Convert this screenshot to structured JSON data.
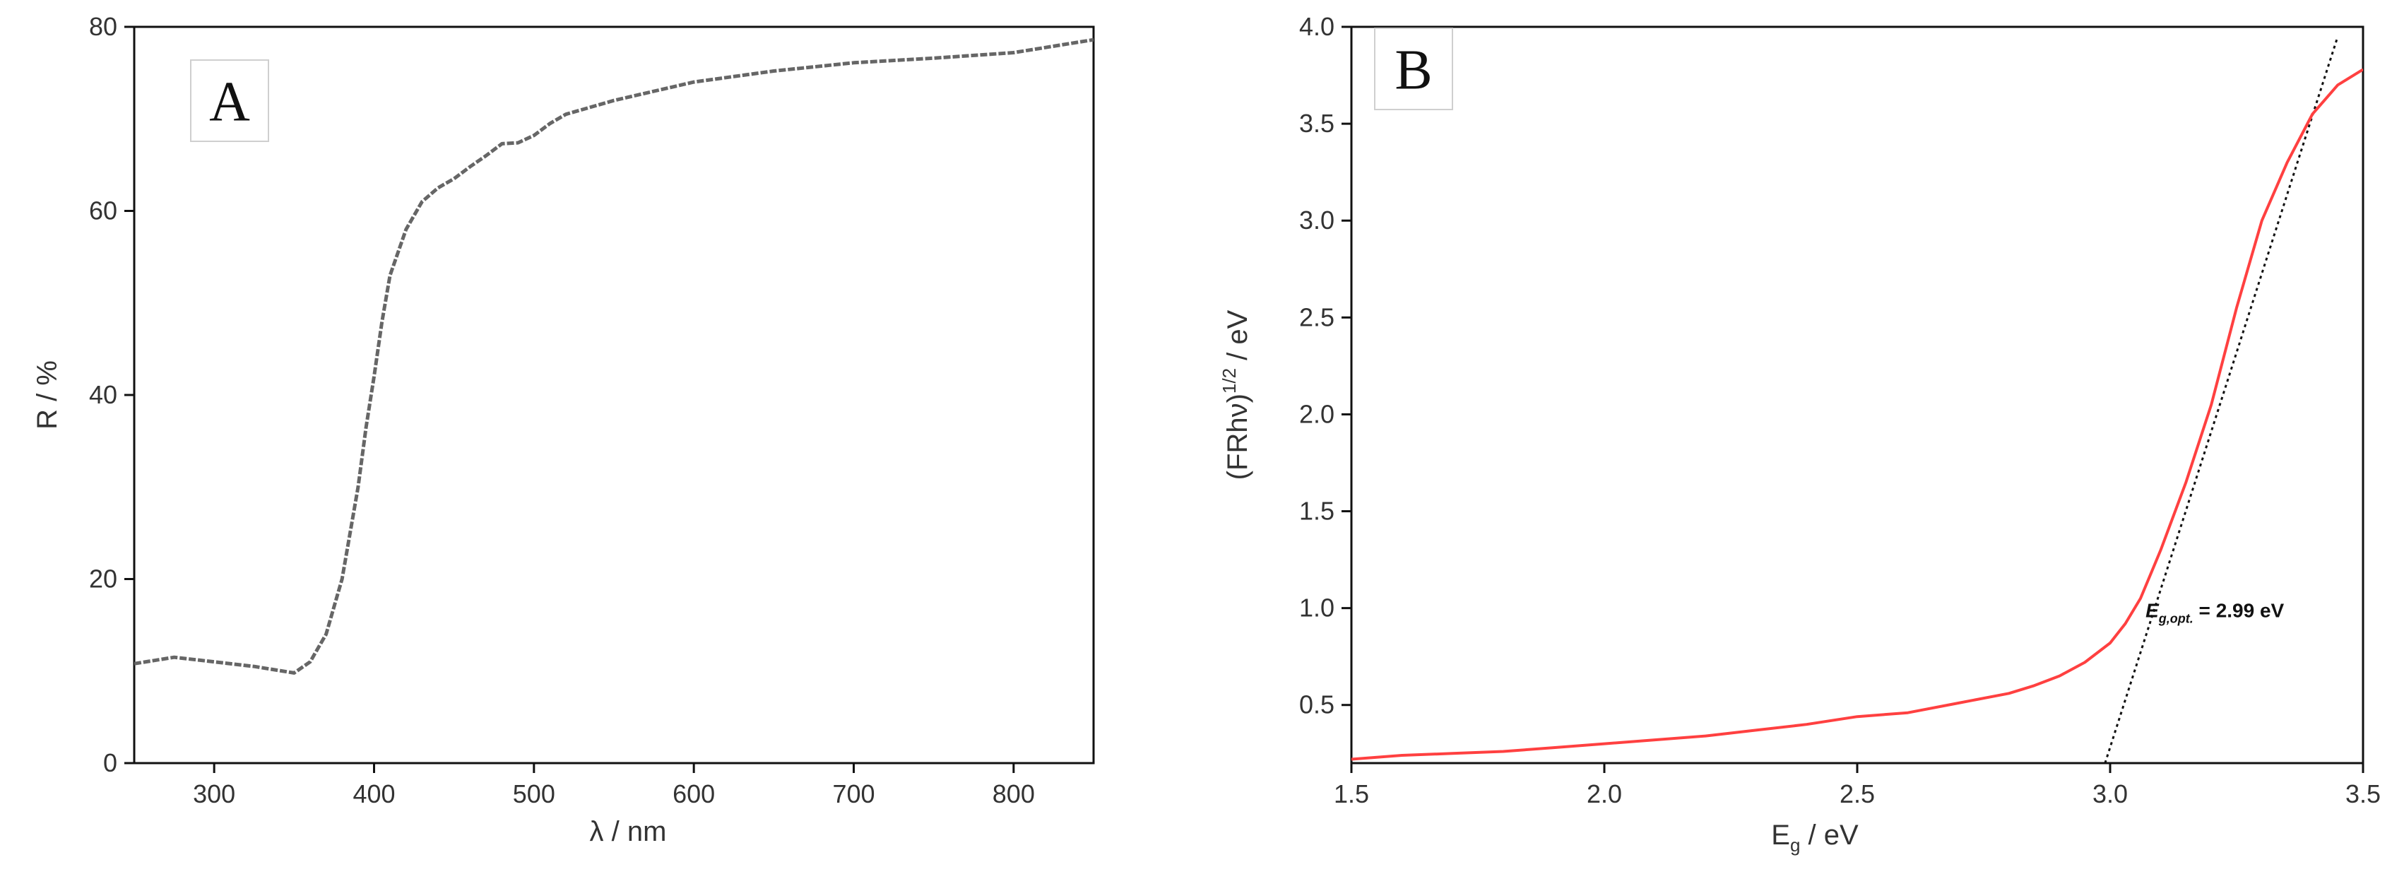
{
  "chart_data": [
    {
      "type": "line",
      "panel_label": "A",
      "xlabel": "λ / nm",
      "ylabel": "R / %",
      "xlim": [
        250,
        850
      ],
      "ylim": [
        0,
        80
      ],
      "xticks": [
        300,
        400,
        500,
        600,
        700,
        800
      ],
      "yticks": [
        0,
        20,
        40,
        60,
        80
      ],
      "grid": false,
      "colors": {
        "series": "#666666"
      },
      "series": [
        {
          "x": [
            250,
            275,
            300,
            325,
            350,
            360,
            370,
            380,
            390,
            395,
            400,
            405,
            410,
            420,
            430,
            440,
            450,
            460,
            470,
            480,
            490,
            500,
            510,
            520,
            550,
            600,
            650,
            700,
            750,
            800,
            850
          ],
          "y": [
            10.8,
            11.5,
            11.0,
            10.5,
            9.8,
            11.0,
            14.0,
            20.0,
            30.0,
            36.5,
            42.0,
            48.0,
            53.0,
            58.0,
            61.0,
            62.5,
            63.5,
            64.8,
            66.0,
            67.3,
            67.4,
            68.2,
            69.5,
            70.5,
            72.0,
            74.0,
            75.2,
            76.1,
            76.6,
            77.2,
            78.6
          ]
        }
      ]
    },
    {
      "type": "line",
      "panel_label": "B",
      "xlabel": {
        "base": "E",
        "sub": "g",
        "rest": " / eV"
      },
      "ylabel": {
        "base": "(FRhν)",
        "sup": "1/2",
        "rest": " / eV"
      },
      "xlim": [
        1.5,
        3.5
      ],
      "ylim": [
        0.2,
        4.0
      ],
      "xticks": [
        1.5,
        2.0,
        2.5,
        3.0,
        3.5
      ],
      "yticks": [
        0.5,
        1.0,
        1.5,
        2.0,
        2.5,
        3.0,
        3.5,
        4.0
      ],
      "grid": false,
      "colors": {
        "series": "#ff4040",
        "fit": "#111111"
      },
      "series": [
        {
          "x": [
            1.5,
            1.6,
            1.7,
            1.8,
            1.9,
            2.0,
            2.1,
            2.2,
            2.3,
            2.4,
            2.5,
            2.6,
            2.7,
            2.8,
            2.85,
            2.9,
            2.95,
            3.0,
            3.03,
            3.06,
            3.1,
            3.15,
            3.2,
            3.25,
            3.3,
            3.35,
            3.4,
            3.45,
            3.5
          ],
          "y": [
            0.22,
            0.24,
            0.25,
            0.26,
            0.28,
            0.3,
            0.32,
            0.34,
            0.37,
            0.4,
            0.44,
            0.46,
            0.51,
            0.56,
            0.6,
            0.65,
            0.72,
            0.82,
            0.92,
            1.05,
            1.3,
            1.65,
            2.05,
            2.55,
            3.0,
            3.3,
            3.55,
            3.7,
            3.78
          ]
        }
      ],
      "fit_line": {
        "x": [
          2.99,
          3.45
        ],
        "y": [
          0.2,
          3.95
        ]
      },
      "annotation": {
        "main": "E",
        "sub": "g,opt.",
        "rest": " = 2.99 eV",
        "x": 3.07,
        "y": 0.99
      }
    }
  ]
}
